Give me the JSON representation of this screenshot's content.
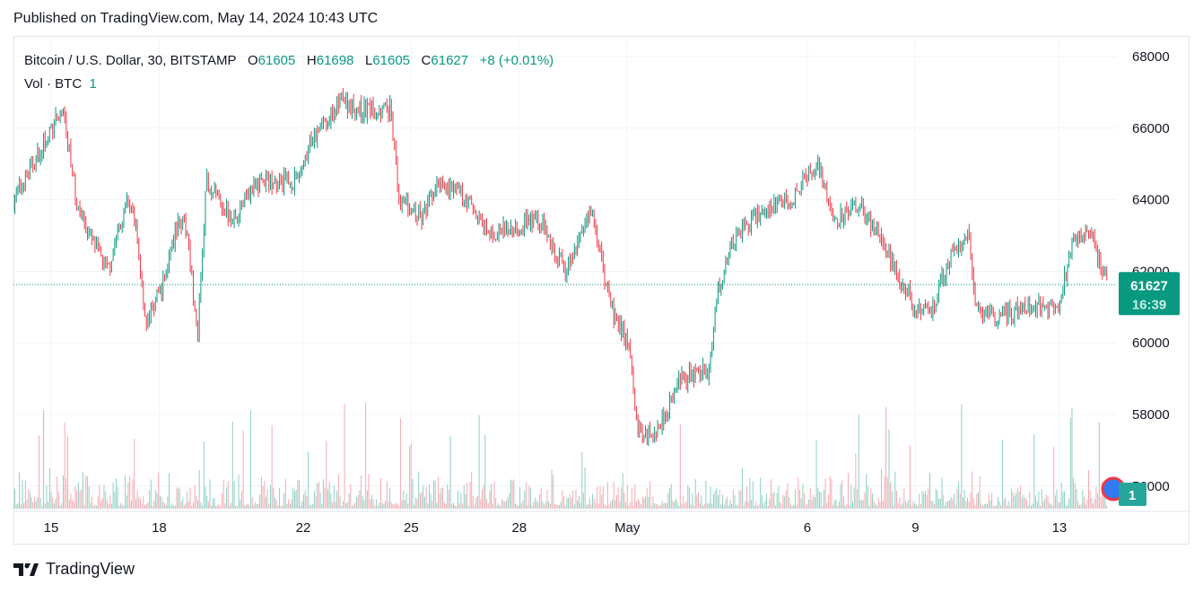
{
  "header": {
    "published": "Published on TradingView.com, May 14, 2024 10:43 UTC"
  },
  "legend": {
    "symbol": "Bitcoin / U.S. Dollar, 30, BITSTAMP",
    "o_label": "O",
    "open": "61605",
    "h_label": "H",
    "high": "61698",
    "l_label": "L",
    "low": "61605",
    "c_label": "C",
    "close": "61627",
    "change": "+8 (+0.01%)",
    "vol_label": "Vol · BTC",
    "vol_value": "1"
  },
  "price_badge": {
    "price": "61627",
    "countdown": "16:39"
  },
  "volume_badge": "1",
  "footer": {
    "brand": "TradingView"
  },
  "colors": {
    "up": "#089981",
    "down": "#f23645",
    "upVol": "#8ed0c4",
    "downVol": "#f7a9b0"
  },
  "chart_data": {
    "type": "candlestick",
    "title": "Bitcoin / U.S. Dollar, 30, BITSTAMP",
    "ylim": [
      55500,
      68500
    ],
    "yticks": [
      56000,
      58000,
      60000,
      62000,
      64000,
      66000,
      68000
    ],
    "xticks": [
      {
        "t": 0,
        "label": "15"
      },
      {
        "t": 3,
        "label": "18"
      },
      {
        "t": 7,
        "label": "22"
      },
      {
        "t": 10,
        "label": "25"
      },
      {
        "t": 13,
        "label": "28"
      },
      {
        "t": 16,
        "label": "May"
      },
      {
        "t": 21,
        "label": "6"
      },
      {
        "t": 24,
        "label": "9"
      },
      {
        "t": 28,
        "label": "13"
      }
    ],
    "xunit": "days since Apr 15 00:00 UTC",
    "last_price": 61627,
    "path": [
      [
        -1.05,
        64000
      ],
      [
        0.32,
        66500
      ],
      [
        0.7,
        64000
      ],
      [
        1.07,
        63000
      ],
      [
        1.57,
        62000
      ],
      [
        2.07,
        64000
      ],
      [
        2.32,
        63500
      ],
      [
        2.64,
        60500
      ],
      [
        3.06,
        61500
      ],
      [
        3.56,
        63500
      ],
      [
        3.81,
        63000
      ],
      [
        4.06,
        60000
      ],
      [
        4.31,
        64500
      ],
      [
        5.06,
        63500
      ],
      [
        5.8,
        64500
      ],
      [
        6.8,
        64500
      ],
      [
        7.17,
        65500
      ],
      [
        8.05,
        66800
      ],
      [
        8.55,
        66500
      ],
      [
        9.42,
        66500
      ],
      [
        9.67,
        64000
      ],
      [
        10.29,
        63500
      ],
      [
        10.79,
        64500
      ],
      [
        11.53,
        64000
      ],
      [
        12.16,
        63000
      ],
      [
        13.03,
        63300
      ],
      [
        13.53,
        63500
      ],
      [
        14.28,
        62000
      ],
      [
        15.02,
        63800
      ],
      [
        15.52,
        61000
      ],
      [
        16.02,
        60000
      ],
      [
        16.32,
        57500
      ],
      [
        16.77,
        57500
      ],
      [
        17.51,
        59000
      ],
      [
        18.26,
        59200
      ],
      [
        18.51,
        61500
      ],
      [
        19.01,
        63000
      ],
      [
        19.51,
        63500
      ],
      [
        20.5,
        64000
      ],
      [
        21.3,
        65000
      ],
      [
        21.75,
        63500
      ],
      [
        22.5,
        63800
      ],
      [
        23.24,
        62500
      ],
      [
        23.99,
        61000
      ],
      [
        24.49,
        61000
      ],
      [
        24.99,
        62500
      ],
      [
        25.49,
        63000
      ],
      [
        25.69,
        61000
      ],
      [
        25.98,
        60700
      ],
      [
        27.23,
        61000
      ],
      [
        27.98,
        61000
      ],
      [
        28.35,
        62800
      ],
      [
        28.85,
        63000
      ],
      [
        29.35,
        61627
      ]
    ]
  }
}
